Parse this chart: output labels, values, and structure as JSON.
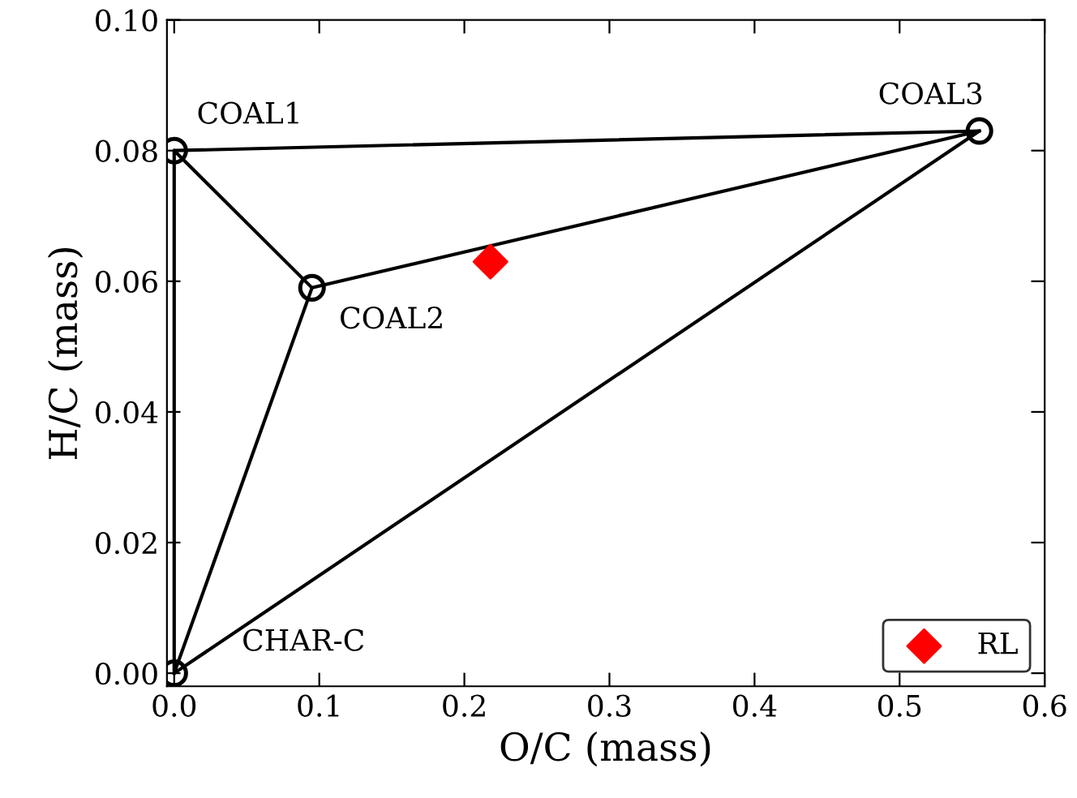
{
  "chart_data": {
    "type": "line",
    "xlabel": "O/C (mass)",
    "ylabel": "H/C (mass)",
    "xlim": [
      -0.005,
      0.6
    ],
    "ylim": [
      -0.002,
      0.1
    ],
    "xticks": [
      {
        "value": 0,
        "label": "0.0"
      },
      {
        "value": 0.1,
        "label": "0.1"
      },
      {
        "value": 0.2,
        "label": "0.2"
      },
      {
        "value": 0.3,
        "label": "0.3"
      },
      {
        "value": 0.4,
        "label": "0.4"
      },
      {
        "value": 0.5,
        "label": "0.5"
      },
      {
        "value": 0.6,
        "label": "0.6"
      }
    ],
    "yticks": [
      {
        "value": 0,
        "label": "0.00"
      },
      {
        "value": 0.02,
        "label": "0.02"
      },
      {
        "value": 0.04,
        "label": "0.04"
      },
      {
        "value": 0.06,
        "label": "0.06"
      },
      {
        "value": 0.08,
        "label": "0.08"
      },
      {
        "value": 0.1,
        "label": "0.10"
      }
    ],
    "grid": false,
    "legend": "bottom right",
    "series": [
      {
        "color": "#000000",
        "x": [
          0,
          0,
          0.555,
          0,
          0.095,
          0
        ],
        "values": [
          0,
          0.08,
          0.083,
          0,
          0.059,
          0.08
        ],
        "marker": "none",
        "line_style": "solid"
      },
      {
        "color": "#000000",
        "x": [
          0.095,
          0.555
        ],
        "values": [
          0.059,
          0.083
        ],
        "marker": "none",
        "line_style": "solid"
      },
      {
        "type": "scatter",
        "color": "#000000",
        "x": [
          0,
          0,
          0.095,
          0.555
        ],
        "values": [
          0,
          0.08,
          0.059,
          0.083
        ],
        "marker": "circle"
      },
      {
        "type": "scatter",
        "name": "RL",
        "color": "#ff0000",
        "x": [
          0.218
        ],
        "values": [
          0.063
        ],
        "marker": "diamond"
      }
    ],
    "annotations": [
      {
        "text": "COAL1",
        "x": 0,
        "y": 0.08
      },
      {
        "text": "COAL2",
        "x": 0.095,
        "y": 0.059
      },
      {
        "text": "COAL3",
        "x": 0.555,
        "y": 0.083
      },
      {
        "text": "CHAR-C",
        "x": 0,
        "y": 0
      }
    ]
  }
}
